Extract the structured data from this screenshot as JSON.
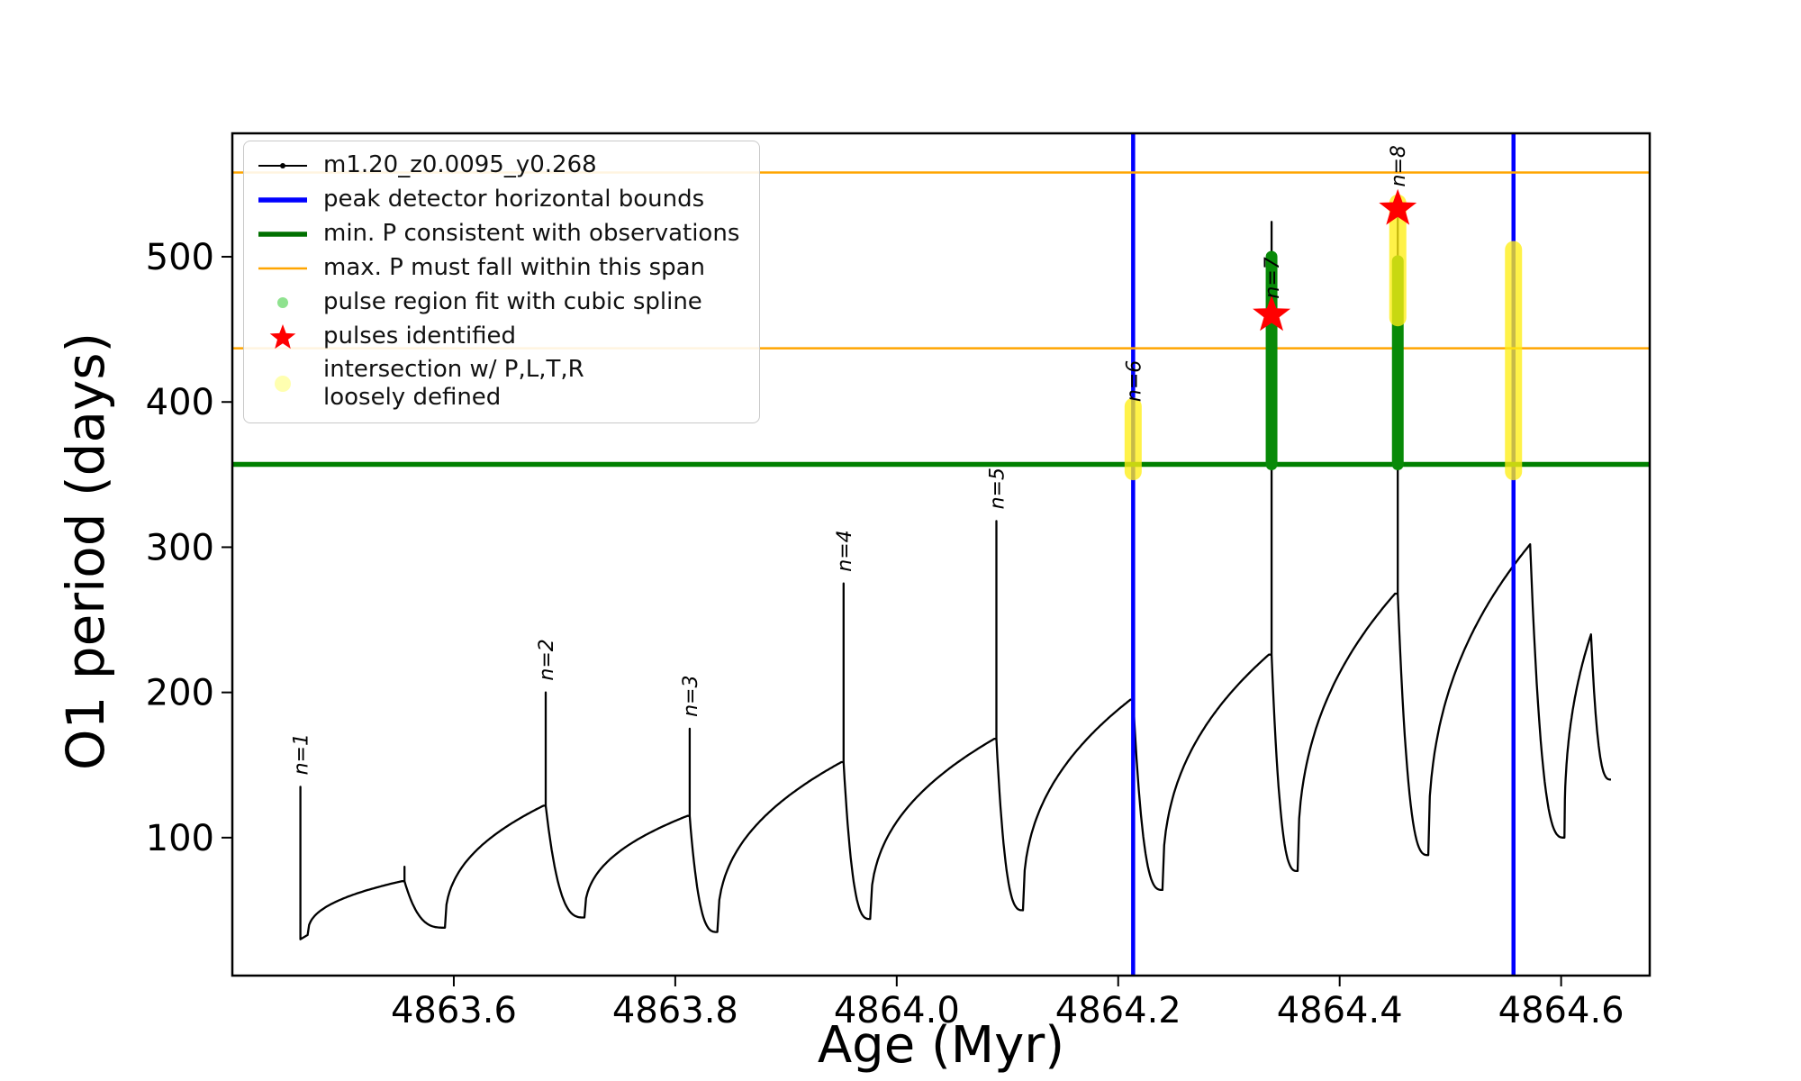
{
  "chart_data": {
    "type": "line",
    "title": "",
    "xlabel": "Age (Myr)",
    "ylabel": "O1 period (days)",
    "xlim": [
      4863.4,
      4864.68
    ],
    "ylim": [
      5,
      585
    ],
    "grid": false,
    "legend_position": "upper-left",
    "xticks": [
      {
        "value": 4863.6,
        "label": "4863.6"
      },
      {
        "value": 4863.8,
        "label": "4863.8"
      },
      {
        "value": 4864.0,
        "label": "4864.0"
      },
      {
        "value": 4864.2,
        "label": "4864.2"
      },
      {
        "value": 4864.4,
        "label": "4864.4"
      },
      {
        "value": 4864.6,
        "label": "4864.6"
      }
    ],
    "yticks": [
      {
        "value": 100,
        "label": "100"
      },
      {
        "value": 200,
        "label": "200"
      },
      {
        "value": 300,
        "label": "300"
      },
      {
        "value": 400,
        "label": "400"
      },
      {
        "value": 500,
        "label": "500"
      }
    ],
    "colors": {
      "curve": "#000000",
      "peak_bounds": "#0000ff",
      "min_P": "#008000",
      "max_P": "#ffa500",
      "pulse_fit": "#088a08",
      "intersection": "rgba(255,238,20,0.78)",
      "pulse_star": "#ff0000"
    },
    "legend": [
      {
        "label": "m1.20_z0.0095_y0.268",
        "marker": "line-dot",
        "color": "#000000",
        "msize": 3
      },
      {
        "label": "peak detector horizontal bounds",
        "marker": "thick-line",
        "color": "#0000ff",
        "msize": 0
      },
      {
        "label": "min. P consistent with observations",
        "marker": "thick-line",
        "color": "#007000",
        "msize": 0
      },
      {
        "label": "max. P must fall within this span",
        "marker": "thin-line",
        "color": "#ffa500",
        "msize": 0
      },
      {
        "label": "pulse region fit with cubic spline",
        "marker": "dot",
        "color": "#8fe28f",
        "msize": 6
      },
      {
        "label": "pulses identified",
        "marker": "star",
        "color": "#ff0000",
        "msize": 15
      },
      {
        "label": "intersection w/ P,L,T,R\nloosely defined",
        "marker": "dot",
        "color": "#ffffb0",
        "msize": 9
      }
    ],
    "series_name": "m1.20_z0.0095_y0.268",
    "peak_detector_bounds_x": [
      4864.2135,
      4864.557
    ],
    "min_P_line_y": 357,
    "max_P_span_y": [
      437,
      558
    ],
    "pulse_fit_bars": [
      {
        "x": 4864.3385,
        "y0": 357,
        "y1": 500
      },
      {
        "x": 4864.4525,
        "y0": 357,
        "y1": 497
      }
    ],
    "intersection_bars": [
      {
        "x": 4864.2135,
        "y0": 352,
        "y1": 397
      },
      {
        "x": 4864.4525,
        "y0": 458,
        "y1": 537
      },
      {
        "x": 4864.557,
        "y0": 352,
        "y1": 505
      }
    ],
    "pulses": [
      {
        "x": 4864.3385,
        "y": 460
      },
      {
        "x": 4864.4525,
        "y": 533
      }
    ],
    "spike_labels": [
      {
        "label": "n=1",
        "x": 4863.4615,
        "y": 140
      },
      {
        "label": "n=2",
        "x": 4863.683,
        "y": 205
      },
      {
        "label": "n=3",
        "x": 4863.813,
        "y": 180
      },
      {
        "label": "n=4",
        "x": 4863.952,
        "y": 280
      },
      {
        "label": "n=5",
        "x": 4864.09,
        "y": 323
      },
      {
        "label": "n=6",
        "x": 4864.2135,
        "y": 397
      },
      {
        "label": "n=7",
        "x": 4864.3385,
        "y": 468
      },
      {
        "label": "n=8",
        "x": 4864.4525,
        "y": 545
      }
    ],
    "curve": {
      "pen_start": {
        "x": 4863.4615,
        "y": 86
      },
      "initial_spike": {
        "x": 4863.4615,
        "top": 135,
        "bottom": 30
      },
      "cycles": [
        {
          "x0": 4863.468,
          "y0": 33,
          "xp": 4863.553,
          "yp": 70,
          "xs": 4863.5555,
          "yt": 80,
          "x1": 4863.592,
          "y1": 38
        },
        {
          "x0": 4863.592,
          "y0": 38,
          "xp": 4863.681,
          "yp": 122,
          "xs": 4863.683,
          "yt": 200,
          "x1": 4863.718,
          "y1": 45
        },
        {
          "x0": 4863.718,
          "y0": 45,
          "xp": 4863.811,
          "yp": 115,
          "xs": 4863.813,
          "yt": 175,
          "x1": 4863.838,
          "y1": 35
        },
        {
          "x0": 4863.838,
          "y0": 35,
          "xp": 4863.95,
          "yp": 152,
          "xs": 4863.952,
          "yt": 275,
          "x1": 4863.976,
          "y1": 44
        },
        {
          "x0": 4863.976,
          "y0": 44,
          "xp": 4864.088,
          "yp": 168,
          "xs": 4864.09,
          "yt": 318,
          "x1": 4864.114,
          "y1": 50
        },
        {
          "x0": 4864.114,
          "y0": 50,
          "xp": 4864.211,
          "yp": 195,
          "xs": 4864.2135,
          "yt": 392,
          "x1": 4864.24,
          "y1": 64
        },
        {
          "x0": 4864.24,
          "y0": 64,
          "xp": 4864.336,
          "yp": 226,
          "xs": 4864.3385,
          "yt": 524,
          "x1": 4864.362,
          "y1": 77
        },
        {
          "x0": 4864.362,
          "y0": 77,
          "xp": 4864.45,
          "yp": 268,
          "xs": 4864.4525,
          "yt": 537,
          "x1": 4864.48,
          "y1": 88
        },
        {
          "x0": 4864.48,
          "y0": 88,
          "xp": 4864.572,
          "yp": 302,
          "xs": 4864.557,
          "yt": 503,
          "x1": 4864.603,
          "y1": 100
        },
        {
          "x0": 4864.603,
          "y0": 100,
          "xp": 4864.627,
          "yp": 240,
          "xs": null,
          "yt": null,
          "x1": 4864.645,
          "y1": 140
        }
      ]
    }
  }
}
